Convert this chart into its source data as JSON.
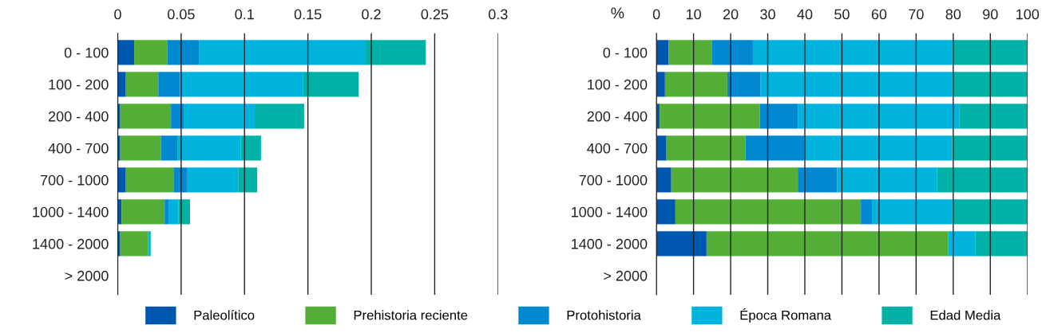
{
  "chart_data": [
    {
      "type": "bar",
      "orientation": "horizontal",
      "stacked": true,
      "categories": [
        "0 - 100",
        "100 - 200",
        "200 - 400",
        "400 - 700",
        "700 - 1000",
        "1000 - 1400",
        "1400 - 2000",
        "> 2000"
      ],
      "xlim": [
        0,
        0.3
      ],
      "xticks": [
        0,
        0.05,
        0.1,
        0.15,
        0.2,
        0.25,
        0.3
      ],
      "grid": "x",
      "legend": "bottom",
      "series": [
        {
          "name": "Paleolítico",
          "color": "#0057b0",
          "values": [
            0.013,
            0.006,
            0.002,
            0.002,
            0.006,
            0.003,
            0.002,
            null
          ]
        },
        {
          "name": "Prehistoria reciente",
          "color": "#54ad37",
          "values": [
            0.026,
            0.026,
            0.04,
            0.032,
            0.038,
            0.034,
            0.022,
            null
          ]
        },
        {
          "name": "Protohistoria",
          "color": "#0088d1",
          "values": [
            0.025,
            0.017,
            0.01,
            0.013,
            0.011,
            0.003,
            0,
            null
          ]
        },
        {
          "name": "Época Romana",
          "color": "#00b3dc",
          "values": [
            0.131,
            0.097,
            0.056,
            0.05,
            0.04,
            0.008,
            0.002,
            null
          ]
        },
        {
          "name": "Edad Media",
          "color": "#00b1a5",
          "values": [
            0.048,
            0.044,
            0.039,
            0.016,
            0.015,
            0.009,
            0,
            null
          ]
        }
      ]
    },
    {
      "type": "bar",
      "orientation": "horizontal",
      "stacked": true,
      "xlabel": "%",
      "categories": [
        "0 - 100",
        "100 - 200",
        "200 - 400",
        "400 - 700",
        "700 - 1000",
        "1000 - 1400",
        "1400 - 2000",
        "> 2000"
      ],
      "xlim": [
        0,
        100
      ],
      "xticks": [
        0,
        10,
        20,
        30,
        40,
        50,
        60,
        70,
        80,
        90,
        100
      ],
      "grid": "x",
      "series": [
        {
          "color": "#0057b0",
          "values": [
            3.3,
            2.3,
            0.9,
            2.7,
            4.0,
            5.1,
            13.5,
            null
          ]
        },
        {
          "color": "#54ad37",
          "values": [
            11.7,
            16.8,
            27.0,
            21.3,
            34.1,
            50.0,
            65.1,
            null
          ]
        },
        {
          "color": "#0088d1",
          "values": [
            11.0,
            9.0,
            10.2,
            15.9,
            10.6,
            3.0,
            0,
            null
          ]
        },
        {
          "color": "#00b3dc",
          "values": [
            53.8,
            51.7,
            43.5,
            39.8,
            26.9,
            21.7,
            7.4,
            null
          ]
        },
        {
          "color": "#00b1a5",
          "values": [
            20.2,
            20.2,
            18.4,
            20.2,
            24.4,
            20.2,
            14.0,
            null
          ]
        }
      ]
    }
  ]
}
